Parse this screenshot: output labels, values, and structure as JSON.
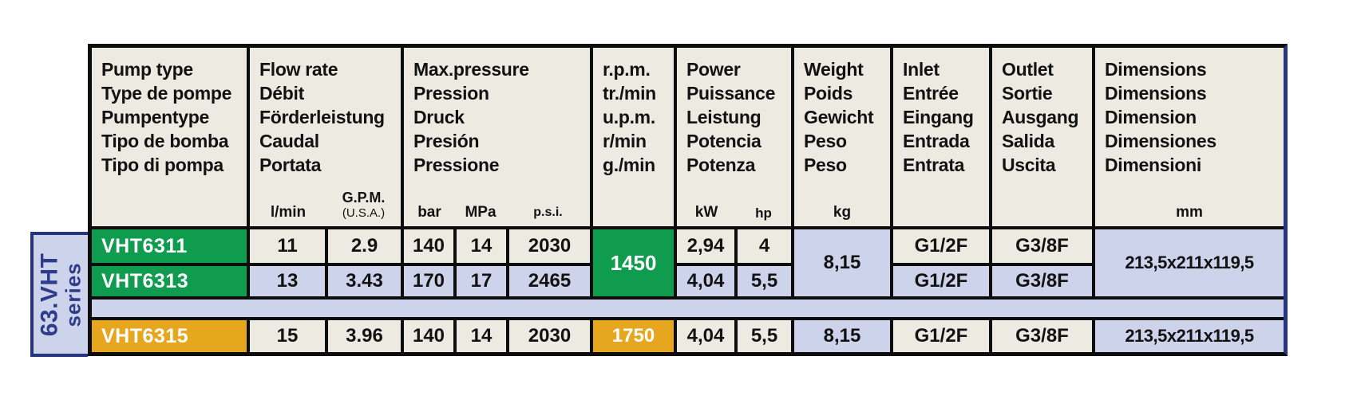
{
  "series": {
    "line1": "63.VHT",
    "line2": "series"
  },
  "columns": [
    {
      "id": "pump_type",
      "labels": [
        "Pump type",
        "Type de pompe",
        "Pumpentype",
        "Tipo de bomba",
        "Tipo di pompa"
      ],
      "units": []
    },
    {
      "id": "flow_rate",
      "labels": [
        "Flow rate",
        "Débit",
        "Förderleistung",
        "Caudal",
        "Portata"
      ],
      "units": [
        "l/min",
        "G.P.M.",
        "(U.S.A.)"
      ]
    },
    {
      "id": "max_pressure",
      "labels": [
        "Max.pressure",
        "Pression",
        "Druck",
        "Presión",
        "Pressione"
      ],
      "units": [
        "bar",
        "MPa",
        "p.s.i."
      ]
    },
    {
      "id": "rpm",
      "labels": [
        "r.p.m.",
        "tr./min",
        "u.p.m.",
        "r/min",
        "g./min"
      ],
      "units": []
    },
    {
      "id": "power",
      "labels": [
        "Power",
        "Puissance",
        "Leistung",
        "Potencia",
        "Potenza"
      ],
      "units": [
        "kW",
        "hp"
      ]
    },
    {
      "id": "weight",
      "labels": [
        "Weight",
        "Poids",
        "Gewicht",
        "Peso",
        "Peso"
      ],
      "units": [
        "kg"
      ]
    },
    {
      "id": "inlet",
      "labels": [
        "Inlet",
        "Entrée",
        "Eingang",
        "Entrada",
        "Entrata"
      ],
      "units": []
    },
    {
      "id": "outlet",
      "labels": [
        "Outlet",
        "Sortie",
        "Ausgang",
        "Salida",
        "Uscita"
      ],
      "units": []
    },
    {
      "id": "dimensions",
      "labels": [
        "Dimensions",
        "Dimensions",
        "Dimension",
        "Dimensiones",
        "Dimensioni"
      ],
      "units": [
        "mm"
      ]
    }
  ],
  "rows": [
    {
      "model": "VHT6311",
      "flow_lmin": "11",
      "flow_gpm": "2.9",
      "bar": "140",
      "mpa": "14",
      "psi": "2030",
      "kw": "2,94",
      "hp": "4",
      "inlet": "G1/2F",
      "outlet": "G3/8F"
    },
    {
      "model": "VHT6313",
      "flow_lmin": "13",
      "flow_gpm": "3.43",
      "bar": "170",
      "mpa": "17",
      "psi": "2465",
      "kw": "4,04",
      "hp": "5,5",
      "inlet": "G1/2F",
      "outlet": "G3/8F"
    },
    {
      "model": "VHT6315",
      "flow_lmin": "15",
      "flow_gpm": "3.96",
      "bar": "140",
      "mpa": "14",
      "psi": "2030",
      "rpm": "1750",
      "kw": "4,04",
      "hp": "5,5",
      "weight": "8,15",
      "inlet": "G1/2F",
      "outlet": "G3/8F",
      "dimensions": "213,5x211x119,5"
    }
  ],
  "merged": {
    "rpm_6311_6313": "1450",
    "weight_6311_6313": "8,15",
    "dimensions_6311_6313": "213,5x211x119,5"
  },
  "colors": {
    "cream": "#edeae2",
    "lavender": "#ccd3ea",
    "green": "#0f9c4f",
    "amber": "#e6a71f",
    "navy": "#273580",
    "border": "#0d0d0d",
    "series_text": "#2f3c8c"
  }
}
